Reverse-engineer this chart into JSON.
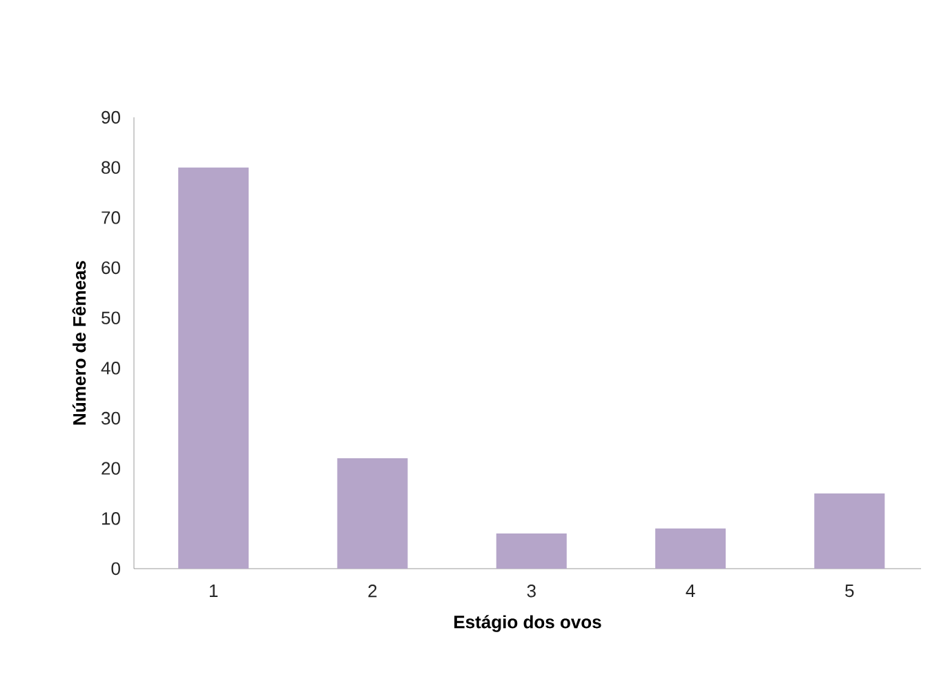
{
  "chart_data": {
    "type": "bar",
    "xlabel": "Estágio dos ovos",
    "ylabel": "Número de Fêmeas",
    "categories": [
      "1",
      "2",
      "3",
      "4",
      "5"
    ],
    "values": [
      80,
      22,
      7,
      8,
      15
    ],
    "color": "#b5a5c9",
    "ylim": [
      0,
      90
    ],
    "yticks": [
      0,
      10,
      20,
      30,
      40,
      50,
      60,
      70,
      80,
      90
    ],
    "grid": false
  }
}
